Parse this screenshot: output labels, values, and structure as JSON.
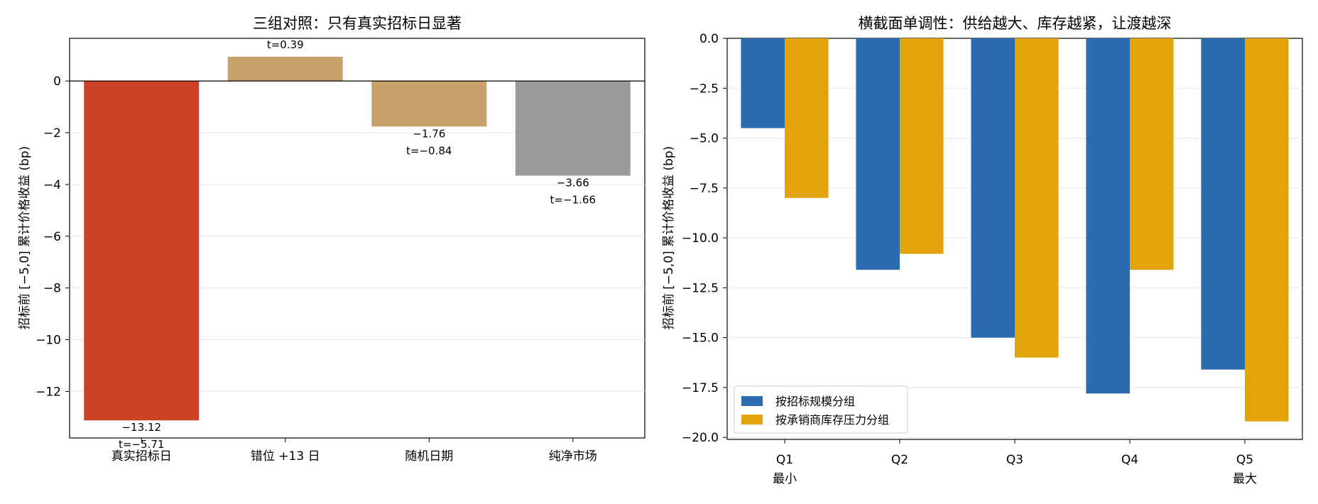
{
  "chart_data": [
    {
      "type": "bar",
      "title": "三组对照：只有真实招标日显著",
      "ylabel": "招标前 [−5,0] 累计价格收益 (bp)",
      "xlabel": "",
      "categories": [
        "真实招标日",
        "错位 +13 日",
        "随机日期",
        "纯净市场"
      ],
      "values": [
        -13.12,
        0.94,
        -1.76,
        -3.66
      ],
      "value_labels": [
        "−13.12",
        "",
        "−1.76",
        "−3.66"
      ],
      "t_labels": [
        "t=−5.71",
        "t=0.39",
        "t=−0.84",
        "t=−1.66"
      ],
      "colors": [
        "#cd4126",
        "#c9a16b",
        "#c9a16b",
        "#9a9a9a"
      ],
      "ylim": [
        -13.8,
        1.65
      ],
      "yticks": [
        0,
        -2,
        -4,
        -6,
        -8,
        -10,
        -12
      ],
      "ytick_labels": [
        "0",
        "−2",
        "−4",
        "−6",
        "−8",
        "−10",
        "−12"
      ],
      "grid": "horizontal",
      "zero_line": true
    },
    {
      "type": "bar",
      "title": "横截面单调性：供给越大、库存越紧，让渡越深",
      "ylabel": "招标前 [−5,0] 累计价格收益 (bp)",
      "xlabel": "",
      "categories": [
        "Q1",
        "Q2",
        "Q3",
        "Q4",
        "Q5"
      ],
      "category_sublabels": [
        "最小",
        "",
        "",
        "",
        "最大"
      ],
      "series": [
        {
          "name": "按招标规模分组",
          "color": "#2b6cb0",
          "values": [
            -4.5,
            -11.6,
            -15.0,
            -17.8,
            -16.6
          ]
        },
        {
          "name": "按承销商库存压力分组",
          "color": "#e3a40b",
          "values": [
            -8.0,
            -10.8,
            -16.0,
            -11.6,
            -19.2
          ]
        }
      ],
      "ylim": [
        -20.1,
        0.0
      ],
      "yticks": [
        0.0,
        -2.5,
        -5.0,
        -7.5,
        -10.0,
        -12.5,
        -15.0,
        -17.5,
        -20.0
      ],
      "ytick_labels": [
        "0.0",
        "−2.5",
        "−5.0",
        "−7.5",
        "−10.0",
        "−12.5",
        "−15.0",
        "−17.5",
        "−20.0"
      ],
      "grid": "horizontal",
      "legend": "lower-left"
    }
  ]
}
